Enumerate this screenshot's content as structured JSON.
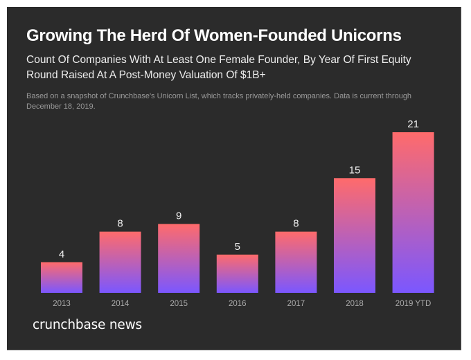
{
  "header": {
    "title": "Growing The Herd Of Women-Founded Unicorns",
    "subtitle": "Count Of Companies With At Least One Female Founder, By Year Of First Equity Round Raised At A Post-Money Valuation Of $1B+",
    "note": "Based on a snapshot of Crunchbase's Unicorn List, which tracks privately-held companies. Data is current through December 18, 2019."
  },
  "footer": {
    "brand": "crunchbase news"
  },
  "colors": {
    "background": "#2b2b2b",
    "bar_top": "#ff6b6b",
    "bar_bottom": "#7b57ff"
  },
  "chart_data": {
    "type": "bar",
    "title": "Growing The Herd Of Women-Founded Unicorns",
    "subtitle": "Count Of Companies With At Least One Female Founder, By Year Of First Equity Round Raised At A Post-Money Valuation Of $1B+",
    "categories": [
      "2013",
      "2014",
      "2015",
      "2016",
      "2017",
      "2018",
      "2019 YTD"
    ],
    "values": [
      4,
      8,
      9,
      5,
      8,
      15,
      21
    ],
    "xlabel": "",
    "ylabel": "",
    "ylim": [
      0,
      21
    ],
    "grid": false,
    "legend": "none",
    "data_labels": true
  }
}
